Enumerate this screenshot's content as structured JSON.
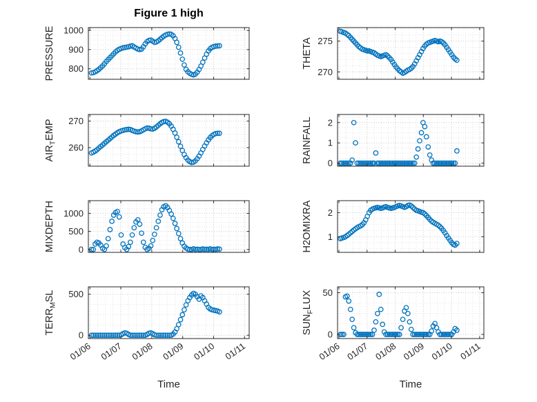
{
  "chart_data": {
    "type": "scatter",
    "title": "Figure 1 high",
    "xlabel": "Time",
    "marker": "o",
    "marker_color": "#0072BD",
    "axis_color": "#262626",
    "grid_major_color": "#c4c4c4",
    "grid_minor_color": "#e2e2e2",
    "xlim": [
      5.95,
      11.15
    ],
    "x_ticks": [
      6,
      7,
      8,
      9,
      10,
      11
    ],
    "x_tick_labels": [
      "01/06",
      "01/07",
      "01/08",
      "01/09",
      "01/10",
      "01/11"
    ],
    "x_minor_step": 0.25,
    "x": [
      6.05,
      6.11,
      6.17,
      6.23,
      6.29,
      6.35,
      6.41,
      6.47,
      6.53,
      6.59,
      6.65,
      6.71,
      6.77,
      6.83,
      6.89,
      6.95,
      7.01,
      7.07,
      7.13,
      7.19,
      7.25,
      7.31,
      7.37,
      7.43,
      7.49,
      7.55,
      7.61,
      7.67,
      7.73,
      7.79,
      7.85,
      7.91,
      7.97,
      8.03,
      8.09,
      8.15,
      8.21,
      8.27,
      8.33,
      8.39,
      8.45,
      8.51,
      8.57,
      8.63,
      8.69,
      8.75,
      8.81,
      8.87,
      8.93,
      8.99,
      9.05,
      9.11,
      9.17,
      9.23,
      9.29,
      9.35,
      9.41,
      9.47,
      9.53,
      9.59,
      9.65,
      9.71,
      9.77,
      9.83,
      9.89,
      9.95,
      10.01,
      10.07,
      10.13,
      10.19
    ],
    "subplots": [
      {
        "name": "PRESSURE",
        "col": 0,
        "row": 0,
        "ylabel_parts": [
          {
            "text": "PRESSURE",
            "sub": false
          }
        ],
        "ylim": [
          745,
          1015
        ],
        "yticks": [
          800,
          900,
          1000
        ],
        "yminor": 25,
        "values": [
          778,
          780,
          784,
          790,
          797,
          806,
          815,
          826,
          838,
          848,
          858,
          868,
          878,
          888,
          896,
          902,
          906,
          909,
          911,
          913,
          915,
          918,
          920,
          914,
          908,
          903,
          900,
          903,
          915,
          930,
          942,
          948,
          950,
          944,
          938,
          940,
          946,
          954,
          962,
          970,
          976,
          980,
          982,
          980,
          972,
          958,
          938,
          912,
          882,
          850,
          820,
          797,
          784,
          776,
          771,
          768,
          772,
          782,
          796,
          814,
          834,
          856,
          876,
          893,
          905,
          912,
          916,
          918,
          919,
          920
        ]
      },
      {
        "name": "THETA",
        "col": 1,
        "row": 0,
        "ylabel_parts": [
          {
            "text": "THETA",
            "sub": false
          }
        ],
        "ylim": [
          268.8,
          277.2
        ],
        "yticks": [
          270,
          275
        ],
        "yminor": 1,
        "values": [
          276.6,
          276.5,
          276.4,
          276.3,
          276.1,
          275.9,
          275.6,
          275.3,
          275.0,
          274.7,
          274.4,
          274.1,
          273.9,
          273.7,
          273.6,
          273.5,
          273.4,
          273.4,
          273.3,
          273.2,
          273.1,
          272.9,
          272.7,
          272.6,
          272.5,
          272.6,
          272.7,
          272.8,
          272.6,
          272.3,
          272.0,
          271.6,
          271.2,
          270.8,
          270.5,
          270.2,
          270.0,
          269.8,
          269.9,
          270.1,
          270.3,
          270.4,
          270.6,
          270.9,
          271.3,
          271.8,
          272.3,
          272.8,
          273.3,
          273.8,
          274.2,
          274.5,
          274.7,
          274.8,
          274.9,
          275.0,
          275.1,
          275.0,
          274.9,
          275.0,
          274.9,
          274.7,
          274.4,
          274.0,
          273.6,
          273.2,
          272.8,
          272.4,
          272.1,
          271.9
        ]
      },
      {
        "name": "AIR_TEMP",
        "col": 0,
        "row": 1,
        "ylabel_parts": [
          {
            "text": "AIR",
            "sub": false
          },
          {
            "text": "T",
            "sub": true
          },
          {
            "text": "EMP",
            "sub": false
          }
        ],
        "ylim": [
          253,
          272.5
        ],
        "yticks": [
          260,
          270
        ],
        "yminor": 2.5,
        "values": [
          258.0,
          258.3,
          258.7,
          259.2,
          259.8,
          260.4,
          261.0,
          261.6,
          262.2,
          262.8,
          263.4,
          264.0,
          264.6,
          265.1,
          265.6,
          266.0,
          266.3,
          266.5,
          266.7,
          266.8,
          266.9,
          266.8,
          266.5,
          266.2,
          266.0,
          265.9,
          266.0,
          266.3,
          266.7,
          267.1,
          267.4,
          267.3,
          267.1,
          267.0,
          267.3,
          267.8,
          268.4,
          269.0,
          269.5,
          269.8,
          269.9,
          269.6,
          269.0,
          268.1,
          266.9,
          265.5,
          263.9,
          262.2,
          260.5,
          258.9,
          257.4,
          256.2,
          255.3,
          254.7,
          254.4,
          254.5,
          255.0,
          255.8,
          256.8,
          258.0,
          259.3,
          260.6,
          261.8,
          262.9,
          263.8,
          264.5,
          265.0,
          265.3,
          265.4,
          265.4
        ]
      },
      {
        "name": "RAINFALL",
        "col": 1,
        "row": 1,
        "ylabel_parts": [
          {
            "text": "RAINFALL",
            "sub": false
          }
        ],
        "ylim": [
          -0.15,
          2.4
        ],
        "yticks": [
          0,
          1,
          2
        ],
        "yminor": 0.25,
        "values": [
          0,
          0,
          0,
          0,
          0,
          0,
          0,
          0.15,
          2.0,
          1.0,
          0,
          0,
          0,
          0,
          0,
          0,
          0,
          0,
          0,
          0,
          0,
          0.5,
          0,
          0,
          0,
          0,
          0,
          0,
          0,
          0,
          0,
          0,
          0,
          0,
          0,
          0,
          0,
          0,
          0,
          0,
          0,
          0,
          0,
          0,
          0,
          0.3,
          0.7,
          1.1,
          1.5,
          2.0,
          1.8,
          1.3,
          0.8,
          0.4,
          0.15,
          0,
          0,
          0,
          0,
          0,
          0,
          0,
          0,
          0,
          0,
          0,
          0,
          0,
          0,
          0.6
        ]
      },
      {
        "name": "MIXDEPTH",
        "col": 0,
        "row": 2,
        "ylabel_parts": [
          {
            "text": "MIXDEPTH",
            "sub": false
          }
        ],
        "ylim": [
          -80,
          1350
        ],
        "yticks": [
          0,
          500,
          1000
        ],
        "yminor": 125,
        "values": [
          0,
          0,
          150,
          200,
          180,
          120,
          30,
          0,
          100,
          300,
          550,
          780,
          950,
          1020,
          1050,
          900,
          400,
          150,
          50,
          0,
          80,
          200,
          400,
          600,
          760,
          820,
          700,
          450,
          200,
          60,
          0,
          30,
          100,
          250,
          420,
          600,
          780,
          950,
          1100,
          1180,
          1210,
          1160,
          1080,
          980,
          860,
          720,
          580,
          440,
          300,
          180,
          90,
          40,
          10,
          0,
          0,
          20,
          0,
          10,
          0,
          0,
          15,
          0,
          10,
          0,
          20,
          0,
          10,
          0,
          15,
          10
        ]
      },
      {
        "name": "H2OMIXRA",
        "col": 1,
        "row": 2,
        "ylabel_parts": [
          {
            "text": "H2OMIXRA",
            "sub": false
          }
        ],
        "ylim": [
          0.35,
          2.5
        ],
        "yticks": [
          1,
          2
        ],
        "yminor": 0.25,
        "values": [
          0.92,
          0.95,
          0.97,
          1.0,
          1.05,
          1.1,
          1.16,
          1.22,
          1.28,
          1.33,
          1.38,
          1.42,
          1.45,
          1.5,
          1.58,
          1.7,
          1.85,
          2.0,
          2.1,
          2.15,
          2.18,
          2.2,
          2.22,
          2.2,
          2.18,
          2.2,
          2.23,
          2.25,
          2.22,
          2.2,
          2.18,
          2.2,
          2.22,
          2.25,
          2.28,
          2.3,
          2.28,
          2.25,
          2.22,
          2.25,
          2.3,
          2.32,
          2.28,
          2.22,
          2.15,
          2.1,
          2.08,
          2.05,
          2.02,
          2.0,
          1.95,
          1.88,
          1.8,
          1.72,
          1.65,
          1.6,
          1.56,
          1.52,
          1.48,
          1.42,
          1.35,
          1.26,
          1.16,
          1.05,
          0.95,
          0.85,
          0.75,
          0.68,
          0.65,
          0.72
        ]
      },
      {
        "name": "TERR_MSL",
        "col": 0,
        "row": 3,
        "ylabel_parts": [
          {
            "text": "TERR",
            "sub": false
          },
          {
            "text": "M",
            "sub": true
          },
          {
            "text": "SL",
            "sub": false
          }
        ],
        "ylim": [
          -40,
          590
        ],
        "yticks": [
          0,
          500
        ],
        "yminor": 125,
        "values": [
          0,
          0,
          0,
          0,
          0,
          0,
          0,
          0,
          0,
          0,
          0,
          0,
          0,
          0,
          0,
          0,
          5,
          20,
          30,
          25,
          10,
          0,
          0,
          0,
          0,
          0,
          0,
          0,
          0,
          0,
          10,
          25,
          30,
          20,
          5,
          0,
          0,
          0,
          0,
          0,
          0,
          0,
          0,
          0,
          15,
          40,
          80,
          130,
          190,
          250,
          310,
          370,
          420,
          460,
          490,
          510,
          500,
          470,
          440,
          480,
          460,
          420,
          380,
          340,
          320,
          310,
          305,
          300,
          295,
          285
        ]
      },
      {
        "name": "SUN_FLUX",
        "col": 1,
        "row": 3,
        "ylabel_parts": [
          {
            "text": "SUN",
            "sub": false
          },
          {
            "text": "F",
            "sub": true
          },
          {
            "text": "LUX",
            "sub": false
          }
        ],
        "ylim": [
          -5,
          57
        ],
        "yticks": [
          0,
          50
        ],
        "yminor": 12.5,
        "values": [
          0,
          0,
          0,
          45,
          46,
          40,
          30,
          18,
          8,
          2,
          0,
          0,
          0,
          0,
          0,
          0,
          0,
          0,
          0,
          0,
          5,
          15,
          25,
          48,
          30,
          12,
          3,
          0,
          0,
          0,
          0,
          0,
          0,
          0,
          0,
          0,
          8,
          18,
          28,
          32,
          25,
          15,
          6,
          0,
          0,
          0,
          0,
          0,
          0,
          0,
          0,
          0,
          0,
          0,
          4,
          10,
          13,
          8,
          3,
          0,
          0,
          0,
          0,
          0,
          0,
          0,
          0,
          3,
          7,
          5
        ]
      }
    ]
  }
}
